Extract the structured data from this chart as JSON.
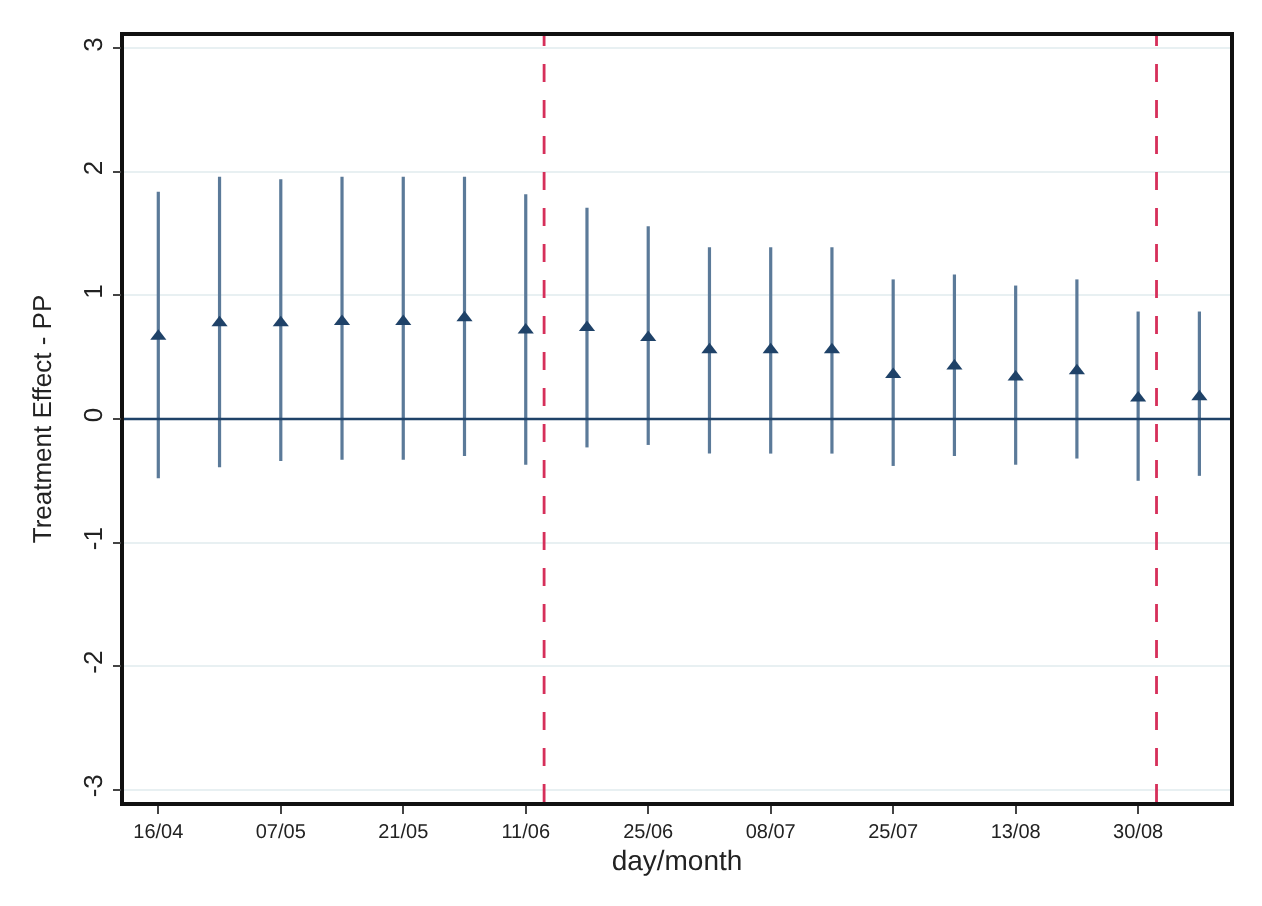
{
  "chart_data": {
    "type": "scatter",
    "xlabel": "day/month",
    "ylabel": "Treatment Effect - PP",
    "categories": [
      "16/04",
      null,
      "07/05",
      null,
      "21/05",
      null,
      "11/06",
      null,
      "25/06",
      null,
      "08/07",
      null,
      "25/07",
      null,
      "13/08",
      null,
      "30/08",
      null
    ],
    "series": [
      {
        "color": "#1f4268",
        "values": [
          0.67,
          0.78,
          0.78,
          0.79,
          0.79,
          0.82,
          0.72,
          0.74,
          0.66,
          0.56,
          0.56,
          0.56,
          0.36,
          0.43,
          0.34,
          0.39,
          0.17,
          0.18
        ],
        "errors": [
          [
            -0.48,
            1.84
          ],
          [
            -0.39,
            1.96
          ],
          [
            -0.34,
            1.94
          ],
          [
            -0.33,
            1.96
          ],
          [
            -0.33,
            1.96
          ],
          [
            -0.3,
            1.96
          ],
          [
            -0.37,
            1.82
          ],
          [
            -0.23,
            1.71
          ],
          [
            -0.21,
            1.56
          ],
          [
            -0.28,
            1.39
          ],
          [
            -0.28,
            1.39
          ],
          [
            -0.28,
            1.39
          ],
          [
            -0.38,
            1.13
          ],
          [
            -0.3,
            1.17
          ],
          [
            -0.37,
            1.08
          ],
          [
            -0.32,
            1.13
          ],
          [
            -0.5,
            0.87
          ],
          [
            -0.46,
            0.87
          ]
        ]
      }
    ],
    "ylim": [
      -3.1,
      3.1
    ],
    "yticks": [
      -3,
      -2,
      -1,
      0,
      1,
      2,
      3
    ],
    "grid": "y",
    "marker": "triangle",
    "ref_lines": [
      {
        "axis": "y",
        "value": 0,
        "color": "#1f4268",
        "line_style": "solid"
      }
    ]
  }
}
